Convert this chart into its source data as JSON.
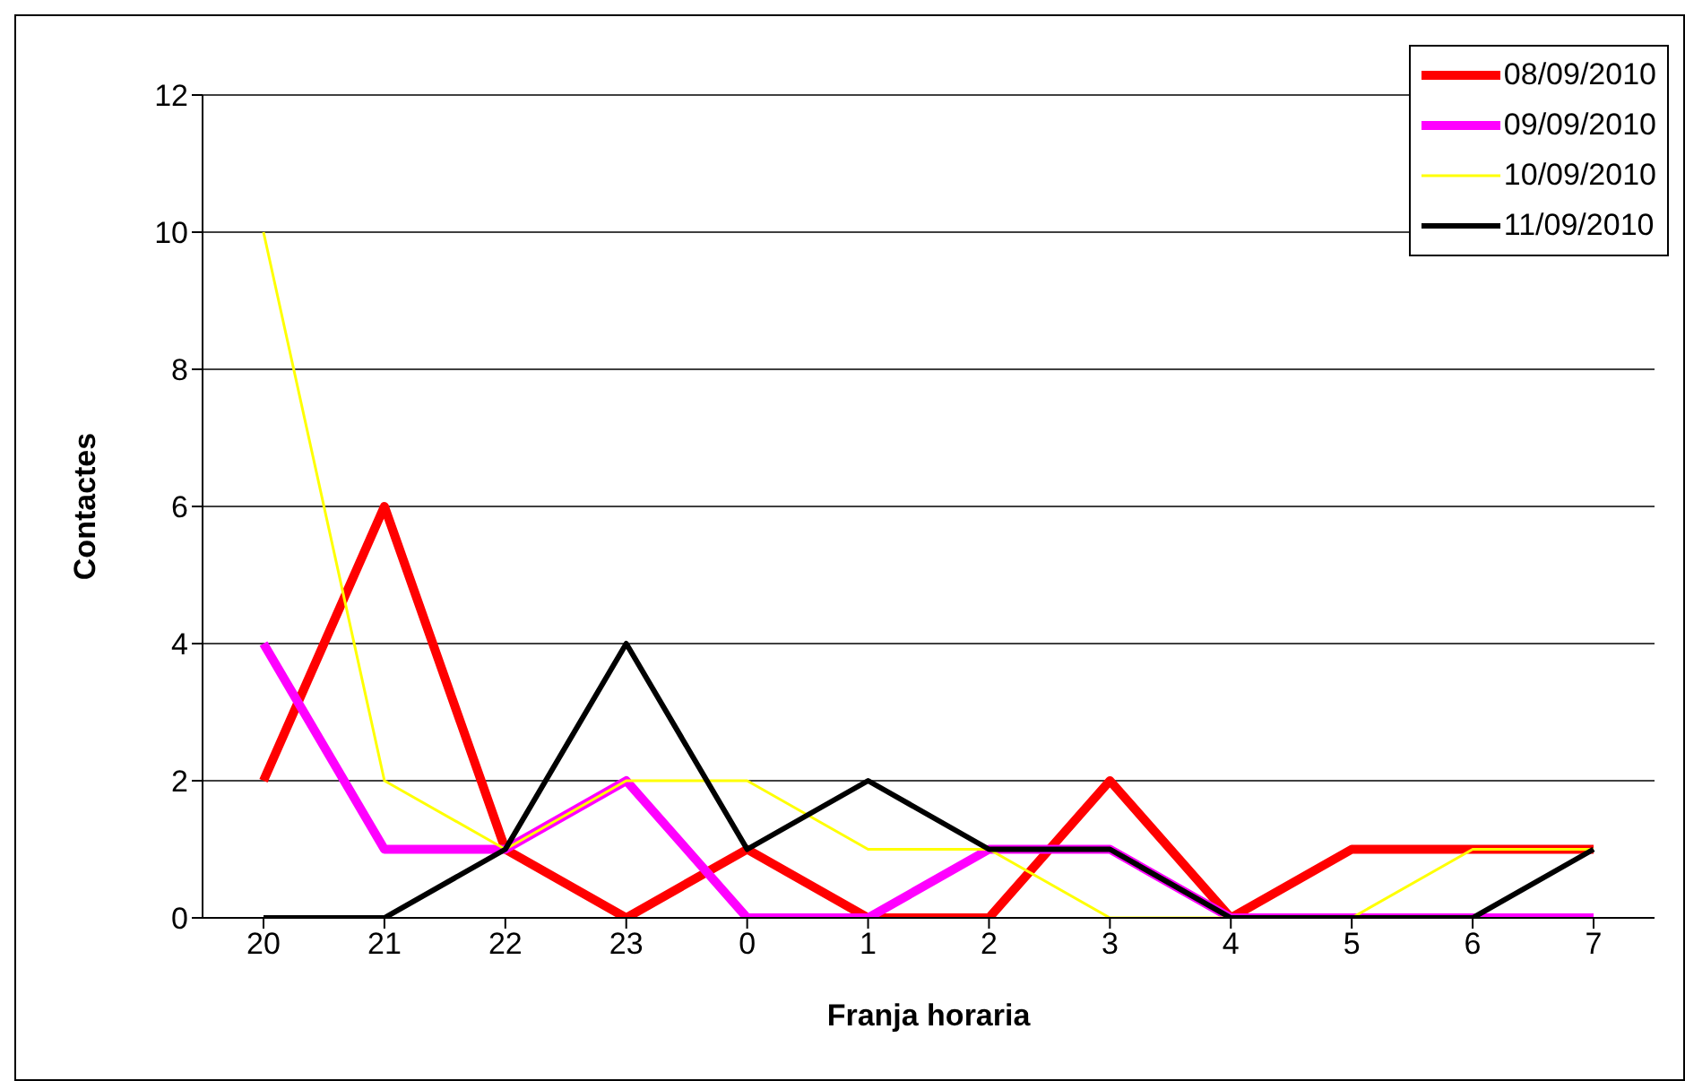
{
  "chart_data": {
    "type": "line",
    "xlabel": "Franja horaria",
    "ylabel": "Contactes",
    "categories": [
      "20",
      "21",
      "22",
      "23",
      "0",
      "1",
      "2",
      "3",
      "4",
      "5",
      "6",
      "7"
    ],
    "series": [
      {
        "name": "08/09/2010",
        "color": "#ff0000",
        "values": [
          2,
          6,
          1,
          0,
          1,
          0,
          0,
          2,
          0,
          1,
          1,
          1
        ]
      },
      {
        "name": "09/09/2010",
        "color": "#ff00ff",
        "values": [
          4,
          1,
          1,
          2,
          0,
          0,
          1,
          1,
          0,
          0,
          0,
          0
        ]
      },
      {
        "name": "10/09/2010",
        "color": "#ffff00",
        "values": [
          10,
          2,
          1,
          2,
          2,
          1,
          1,
          0,
          0,
          0,
          1,
          1
        ]
      },
      {
        "name": "11/09/2010",
        "color": "#000000",
        "values": [
          0,
          0,
          1,
          4,
          1,
          2,
          1,
          1,
          0,
          0,
          0,
          1
        ]
      }
    ],
    "ylim": [
      0,
      12
    ],
    "yticks": [
      0,
      2,
      4,
      6,
      8,
      10,
      12
    ],
    "grid": "y",
    "legend": "top right",
    "marker": "none",
    "line_style": "solid"
  }
}
